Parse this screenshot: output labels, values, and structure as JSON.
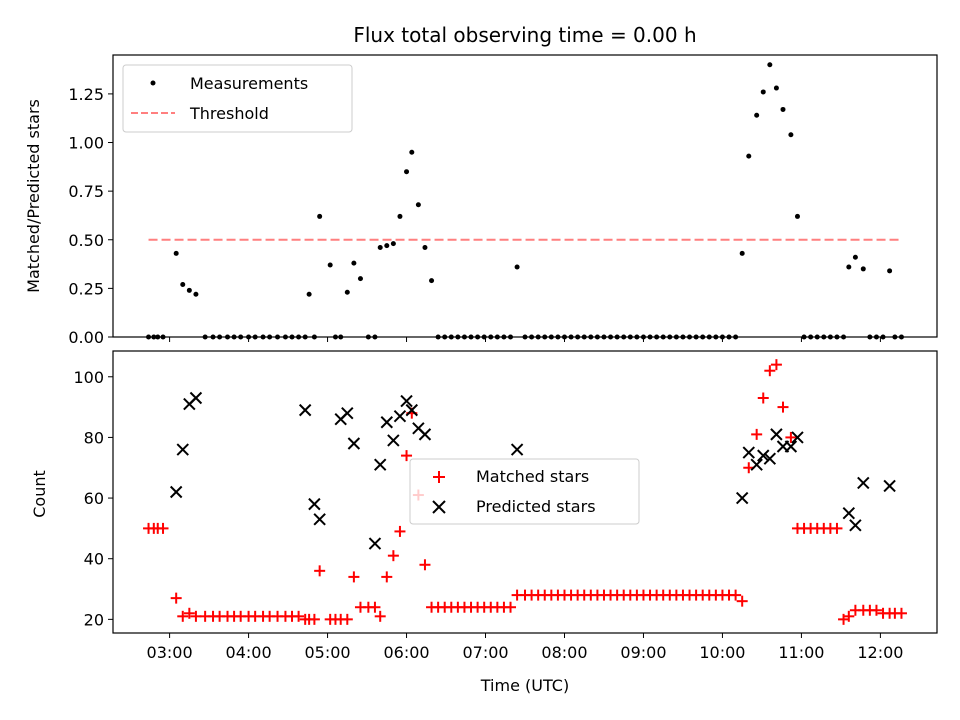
{
  "chart_data": [
    {
      "type": "scatter",
      "title": "Flux total observing time = 0.00 h",
      "xlabel": "",
      "ylabel": "Matched/Predicted stars",
      "ylim": [
        0,
        1.45
      ],
      "yticks": [
        "0.00",
        "0.25",
        "0.50",
        "0.75",
        "1.00",
        "1.25"
      ],
      "legend_placement": "top-left",
      "grid": false,
      "series": [
        {
          "name": "Measurements",
          "style": "dot",
          "color": "#000000",
          "x": [
            "02:44",
            "02:48",
            "02:51",
            "02:55",
            "03:05",
            "03:10",
            "03:15",
            "03:20",
            "03:27",
            "03:33",
            "03:38",
            "03:44",
            "03:49",
            "03:54",
            "04:00",
            "04:05",
            "04:11",
            "04:16",
            "04:22",
            "04:28",
            "04:33",
            "04:38",
            "04:43",
            "04:46",
            "04:50",
            "04:54",
            "05:02",
            "05:06",
            "05:10",
            "05:15",
            "05:20",
            "05:25",
            "05:31",
            "05:36",
            "05:40",
            "05:45",
            "05:50",
            "05:55",
            "06:00",
            "06:04",
            "06:09",
            "06:14",
            "06:19",
            "06:24",
            "06:29",
            "06:34",
            "06:39",
            "06:44",
            "06:49",
            "06:54",
            "06:59",
            "07:04",
            "07:09",
            "07:14",
            "07:19",
            "07:24",
            "07:30",
            "07:35",
            "07:40",
            "07:45",
            "07:50",
            "07:55",
            "08:00",
            "08:05",
            "08:10",
            "08:15",
            "08:20",
            "08:25",
            "08:30",
            "08:35",
            "08:40",
            "08:45",
            "08:50",
            "08:55",
            "09:00",
            "09:05",
            "09:10",
            "09:15",
            "09:20",
            "09:25",
            "09:30",
            "09:35",
            "09:40",
            "09:45",
            "09:50",
            "09:55",
            "10:00",
            "10:05",
            "10:10",
            "10:15",
            "10:20",
            "10:26",
            "10:31",
            "10:36",
            "10:41",
            "10:46",
            "10:52",
            "10:57",
            "11:02",
            "11:07",
            "11:12",
            "11:17",
            "11:22",
            "11:27",
            "11:32",
            "11:36",
            "11:41",
            "11:47",
            "11:52",
            "11:57",
            "12:02",
            "12:07",
            "12:11",
            "12:16"
          ],
          "y": [
            0,
            0,
            0,
            0,
            0.43,
            0.27,
            0.24,
            0.22,
            0,
            0,
            0,
            0,
            0,
            0,
            0,
            0,
            0,
            0,
            0,
            0,
            0,
            0,
            0,
            0.22,
            0,
            0.62,
            0.37,
            0,
            0,
            0.23,
            0.38,
            0.3,
            0,
            0,
            0.46,
            0.47,
            0.48,
            0.62,
            0.85,
            0.95,
            0.68,
            0.46,
            0.29,
            0,
            0,
            0,
            0,
            0,
            0,
            0,
            0,
            0,
            0,
            0,
            0,
            0.36,
            0,
            0,
            0,
            0,
            0,
            0,
            0,
            0,
            0,
            0,
            0,
            0,
            0,
            0,
            0,
            0,
            0,
            0,
            0,
            0,
            0,
            0,
            0,
            0,
            0,
            0,
            0,
            0,
            0,
            0,
            0,
            0,
            0,
            0.43,
            0.93,
            1.14,
            1.26,
            1.4,
            1.28,
            1.17,
            1.04,
            0.62,
            0,
            0,
            0,
            0,
            0,
            0,
            0,
            0.36,
            0.41,
            0.35,
            0,
            0,
            0,
            0.34,
            0,
            0
          ]
        },
        {
          "name": "Threshold",
          "style": "dashed-line",
          "color": "#ff7f7f",
          "x": [
            "02:44",
            "12:16"
          ],
          "y": [
            0.5,
            0.5
          ]
        }
      ]
    },
    {
      "type": "scatter",
      "title": "",
      "xlabel": "Time (UTC)",
      "ylabel": "Count",
      "ylim": [
        15.5,
        108.5
      ],
      "yticks": [
        "20",
        "40",
        "60",
        "80",
        "100"
      ],
      "xticks": [
        "03:00",
        "04:00",
        "05:00",
        "06:00",
        "07:00",
        "08:00",
        "09:00",
        "10:00",
        "11:00",
        "12:00"
      ],
      "xlim": [
        "02:17",
        "12:43"
      ],
      "legend_placement": "center",
      "grid": false,
      "series": [
        {
          "name": "Matched stars",
          "marker": "+",
          "color": "#ff0000",
          "x": [
            "02:44",
            "02:48",
            "02:51",
            "02:55",
            "03:05",
            "03:10",
            "03:15",
            "03:20",
            "03:27",
            "03:33",
            "03:38",
            "03:44",
            "03:49",
            "03:54",
            "04:00",
            "04:05",
            "04:11",
            "04:16",
            "04:22",
            "04:28",
            "04:33",
            "04:38",
            "04:43",
            "04:46",
            "04:50",
            "04:54",
            "05:02",
            "05:06",
            "05:10",
            "05:15",
            "05:20",
            "05:25",
            "05:31",
            "05:36",
            "05:40",
            "05:45",
            "05:50",
            "05:55",
            "06:00",
            "06:04",
            "06:09",
            "06:14",
            "06:19",
            "06:24",
            "06:29",
            "06:34",
            "06:39",
            "06:44",
            "06:49",
            "06:54",
            "06:59",
            "07:04",
            "07:09",
            "07:14",
            "07:19",
            "07:24",
            "07:30",
            "07:35",
            "07:40",
            "07:45",
            "07:50",
            "07:55",
            "08:00",
            "08:05",
            "08:10",
            "08:15",
            "08:20",
            "08:25",
            "08:30",
            "08:35",
            "08:40",
            "08:45",
            "08:50",
            "08:55",
            "09:00",
            "09:05",
            "09:10",
            "09:15",
            "09:20",
            "09:25",
            "09:30",
            "09:35",
            "09:40",
            "09:45",
            "09:50",
            "09:55",
            "10:00",
            "10:05",
            "10:10",
            "10:15",
            "10:20",
            "10:26",
            "10:31",
            "10:36",
            "10:41",
            "10:46",
            "10:52",
            "10:57",
            "11:02",
            "11:07",
            "11:12",
            "11:17",
            "11:22",
            "11:27",
            "11:32",
            "11:36",
            "11:41",
            "11:47",
            "11:52",
            "11:57",
            "12:02",
            "12:07",
            "12:11",
            "12:16"
          ],
          "y": [
            50,
            50,
            50,
            50,
            27,
            21,
            22,
            21,
            21,
            21,
            21,
            21,
            21,
            21,
            21,
            21,
            21,
            21,
            21,
            21,
            21,
            21,
            20,
            20,
            20,
            36,
            20,
            20,
            20,
            20,
            34,
            24,
            24,
            24,
            21,
            34,
            41,
            49,
            74,
            88,
            61,
            38,
            24,
            24,
            24,
            24,
            24,
            24,
            24,
            24,
            24,
            24,
            24,
            24,
            24,
            28,
            28,
            28,
            28,
            28,
            28,
            28,
            28,
            28,
            28,
            28,
            28,
            28,
            28,
            28,
            28,
            28,
            28,
            28,
            28,
            28,
            28,
            28,
            28,
            28,
            28,
            28,
            28,
            28,
            28,
            28,
            28,
            28,
            28,
            26,
            70,
            81,
            93,
            102,
            104,
            90,
            80,
            50,
            50,
            50,
            50,
            50,
            50,
            50,
            20,
            21,
            23,
            23,
            23,
            23,
            22,
            22,
            22,
            22
          ]
        },
        {
          "name": "Predicted stars",
          "marker": "x",
          "color": "#000000",
          "x": [
            "03:05",
            "03:10",
            "03:15",
            "03:20",
            "04:43",
            "04:50",
            "04:54",
            "05:10",
            "05:15",
            "05:20",
            "05:36",
            "05:40",
            "05:45",
            "05:50",
            "05:55",
            "06:00",
            "06:04",
            "06:09",
            "06:14",
            "07:24",
            "10:15",
            "10:20",
            "10:26",
            "10:31",
            "10:36",
            "10:41",
            "10:46",
            "10:52",
            "10:57",
            "11:36",
            "11:41",
            "11:47",
            "12:07"
          ],
          "y": [
            62,
            76,
            91,
            93,
            89,
            58,
            53,
            86,
            88,
            78,
            45,
            71,
            85,
            79,
            87,
            92,
            89,
            83,
            81,
            76,
            60,
            75,
            71,
            74,
            73,
            81,
            77,
            77,
            80,
            55,
            51,
            65,
            64
          ]
        }
      ]
    }
  ]
}
